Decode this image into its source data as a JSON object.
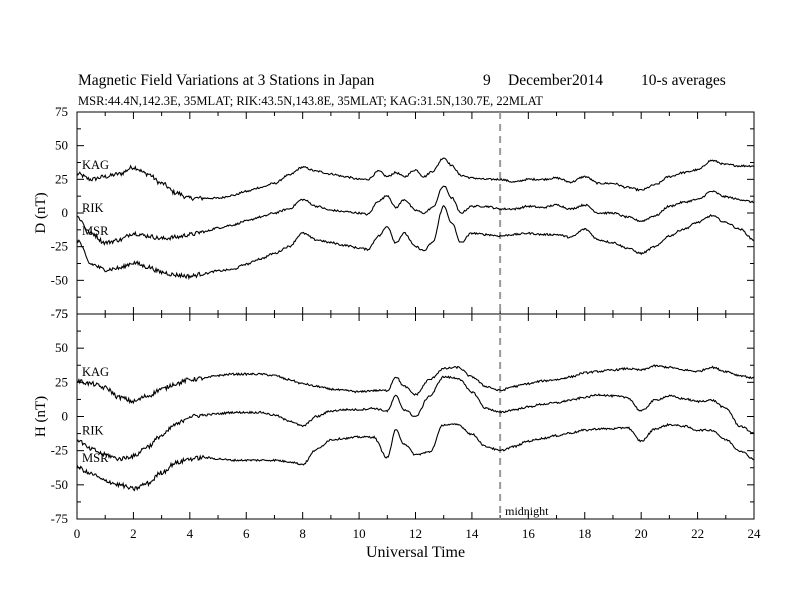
{
  "header": {
    "title_main": "Magnetic Field Variations at 3 Stations in Japan",
    "title_day": "9",
    "title_month": "December",
    "title_year": "2014",
    "title_avg": "10-s averages",
    "subtitle": "MSR:44.4N,142.3E, 35MLAT;  RIK:43.5N,143.8E, 35MLAT;  KAG:31.5N,130.7E, 22MLAT"
  },
  "chart_data": [
    {
      "type": "line",
      "panel": "top",
      "ylabel": "D (nT)",
      "ylim": [
        -75,
        75
      ],
      "yticks": [
        "75",
        "50",
        "25",
        "0",
        "-25",
        "-50",
        "-75"
      ],
      "xlim": [
        0,
        24
      ],
      "marker": {
        "x": 15,
        "style": "dashed",
        "color": "#999999"
      },
      "series": [
        {
          "name": "KAG",
          "x": [
            0,
            0.5,
            1,
            1.5,
            2,
            2.5,
            3,
            3.5,
            4,
            4.5,
            5,
            5.5,
            6,
            6.5,
            7,
            7.5,
            8,
            8.5,
            9,
            9.5,
            10,
            10.3,
            10.7,
            11,
            11.3,
            11.6,
            12,
            12.3,
            12.6,
            13,
            13.3,
            13.6,
            14,
            14.5,
            15,
            15.5,
            16,
            16.5,
            17,
            17.5,
            18,
            18.5,
            19,
            19.5,
            20,
            20.5,
            21,
            21.5,
            22,
            22.5,
            23,
            23.5,
            24
          ],
          "y": [
            29,
            25,
            27,
            29,
            34,
            29,
            22,
            15,
            11,
            11,
            11,
            13,
            16,
            19,
            22,
            28,
            34,
            31,
            29,
            27,
            25,
            25,
            31,
            27,
            30,
            27,
            32,
            27,
            31,
            41,
            35,
            28,
            26,
            25,
            25,
            23,
            25,
            25,
            26,
            23,
            27,
            22,
            22,
            19,
            17,
            21,
            27,
            30,
            32,
            39,
            36,
            35,
            35
          ]
        },
        {
          "name": "RIK",
          "x": [
            0,
            0.5,
            1,
            1.5,
            2,
            2.5,
            3,
            3.5,
            4,
            4.5,
            5,
            5.5,
            6,
            6.5,
            7,
            7.5,
            8,
            8.5,
            9,
            9.5,
            10,
            10.3,
            10.7,
            11,
            11.3,
            11.6,
            12,
            12.3,
            12.6,
            13,
            13.3,
            13.6,
            14,
            14.5,
            15,
            15.5,
            16,
            16.5,
            17,
            17.5,
            18,
            18.5,
            19,
            19.5,
            20,
            20.5,
            21,
            21.5,
            22,
            22.5,
            23,
            23.5,
            24
          ],
          "y": [
            -3,
            -15,
            -22,
            -20,
            -15,
            -17,
            -19,
            -18,
            -16,
            -14,
            -11,
            -9,
            -6,
            -3,
            0,
            3,
            10,
            5,
            2,
            1,
            0,
            -1,
            9,
            13,
            4,
            10,
            2,
            0,
            4,
            20,
            11,
            0,
            5,
            5,
            3,
            3,
            5,
            4,
            6,
            3,
            6,
            0,
            0,
            -3,
            -6,
            -2,
            5,
            8,
            10,
            16,
            12,
            10,
            8
          ]
        },
        {
          "name": "MSR",
          "x": [
            0,
            0.5,
            1,
            1.5,
            2,
            2.5,
            3,
            3.5,
            4,
            4.5,
            5,
            5.5,
            6,
            6.5,
            7,
            7.5,
            8,
            8.5,
            9,
            9.5,
            10,
            10.3,
            10.7,
            11,
            11.3,
            11.6,
            12,
            12.3,
            12.6,
            13,
            13.3,
            13.6,
            14,
            14.5,
            15,
            15.5,
            16,
            16.5,
            17,
            17.5,
            18,
            18.5,
            19,
            19.5,
            20,
            20.5,
            21,
            21.5,
            22,
            22.5,
            23,
            23.5,
            24
          ],
          "y": [
            -20,
            -38,
            -42,
            -41,
            -37,
            -40,
            -44,
            -46,
            -47,
            -45,
            -43,
            -42,
            -38,
            -34,
            -30,
            -25,
            -15,
            -20,
            -22,
            -24,
            -26,
            -27,
            -17,
            -10,
            -22,
            -15,
            -25,
            -28,
            -22,
            5,
            -8,
            -22,
            -15,
            -16,
            -17,
            -16,
            -15,
            -16,
            -16,
            -18,
            -12,
            -20,
            -22,
            -26,
            -30,
            -25,
            -17,
            -12,
            -7,
            -2,
            -7,
            -12,
            -20
          ]
        }
      ]
    },
    {
      "type": "line",
      "panel": "bottom",
      "ylabel": "H (nT)",
      "ylim": [
        -75,
        75
      ],
      "yticks": [
        "75",
        "50",
        "25",
        "0",
        "-25",
        "-50",
        "-75"
      ],
      "xlim": [
        0,
        24
      ],
      "xticks": [
        "0",
        "2",
        "4",
        "6",
        "8",
        "10",
        "12",
        "14",
        "16",
        "18",
        "20",
        "22",
        "24"
      ],
      "xlabel": "Universal Time",
      "annotation": "midnight",
      "marker": {
        "x": 15,
        "style": "dashed",
        "color": "#999999"
      },
      "series": [
        {
          "name": "KAG",
          "x": [
            0,
            0.5,
            1,
            1.5,
            2,
            2.5,
            3,
            3.5,
            4,
            4.5,
            5,
            5.5,
            6,
            6.5,
            7,
            7.5,
            8,
            8.5,
            9,
            9.5,
            10,
            10.5,
            11,
            11.3,
            11.6,
            12,
            12.5,
            13,
            13.5,
            14,
            14.5,
            15,
            15.5,
            16,
            16.5,
            17,
            17.5,
            18,
            18.5,
            19,
            19.5,
            20,
            20.5,
            21,
            21.5,
            22,
            22.5,
            23,
            23.5,
            24
          ],
          "y": [
            26,
            24,
            21,
            14,
            11,
            15,
            20,
            24,
            27,
            28,
            30,
            31,
            31,
            31,
            30,
            27,
            24,
            22,
            20,
            19,
            18,
            19,
            19,
            29,
            22,
            16,
            27,
            35,
            36,
            29,
            22,
            19,
            22,
            24,
            26,
            27,
            29,
            32,
            33,
            34,
            35,
            34,
            37,
            36,
            34,
            33,
            36,
            33,
            30,
            28
          ]
        },
        {
          "name": "RIK",
          "x": [
            0,
            0.5,
            1,
            1.5,
            2,
            2.5,
            3,
            3.5,
            4,
            4.5,
            5,
            5.5,
            6,
            6.5,
            7,
            7.5,
            8,
            8.5,
            9,
            9.5,
            10,
            10.5,
            11,
            11.3,
            11.6,
            12,
            12.5,
            13,
            13.5,
            14,
            14.5,
            15,
            15.5,
            16,
            16.5,
            17,
            17.5,
            18,
            18.5,
            19,
            19.5,
            20,
            20.5,
            21,
            21.5,
            22,
            22.5,
            23,
            23.5,
            24
          ],
          "y": [
            -17,
            -24,
            -28,
            -31,
            -29,
            -22,
            -14,
            -6,
            0,
            1,
            2,
            3,
            3,
            3,
            1,
            -3,
            -7,
            0,
            4,
            5,
            5,
            6,
            4,
            15,
            5,
            0,
            15,
            29,
            28,
            18,
            6,
            3,
            5,
            7,
            9,
            10,
            12,
            14,
            16,
            15,
            14,
            4,
            12,
            15,
            13,
            11,
            12,
            6,
            -7,
            -12
          ]
        },
        {
          "name": "MSR",
          "x": [
            0,
            0.5,
            1,
            1.5,
            2,
            2.5,
            3,
            3.5,
            4,
            4.5,
            5,
            5.5,
            6,
            6.5,
            7,
            7.5,
            8,
            8.5,
            9,
            9.5,
            10,
            10.5,
            11,
            11.3,
            11.6,
            12,
            12.5,
            13,
            13.5,
            14,
            14.5,
            15,
            15.5,
            16,
            16.5,
            17,
            17.5,
            18,
            18.5,
            19,
            19.5,
            20,
            20.5,
            21,
            21.5,
            22,
            22.5,
            23,
            23.5,
            24
          ],
          "y": [
            -37,
            -42,
            -47,
            -50,
            -53,
            -49,
            -41,
            -34,
            -31,
            -30,
            -31,
            -32,
            -32,
            -32,
            -32,
            -33,
            -35,
            -24,
            -17,
            -16,
            -15,
            -15,
            -30,
            -10,
            -20,
            -28,
            -26,
            -6,
            -6,
            -13,
            -22,
            -25,
            -22,
            -18,
            -16,
            -14,
            -12,
            -10,
            -9,
            -9,
            -8,
            -18,
            -9,
            -6,
            -7,
            -10,
            -10,
            -17,
            -25,
            -31
          ]
        }
      ]
    }
  ]
}
